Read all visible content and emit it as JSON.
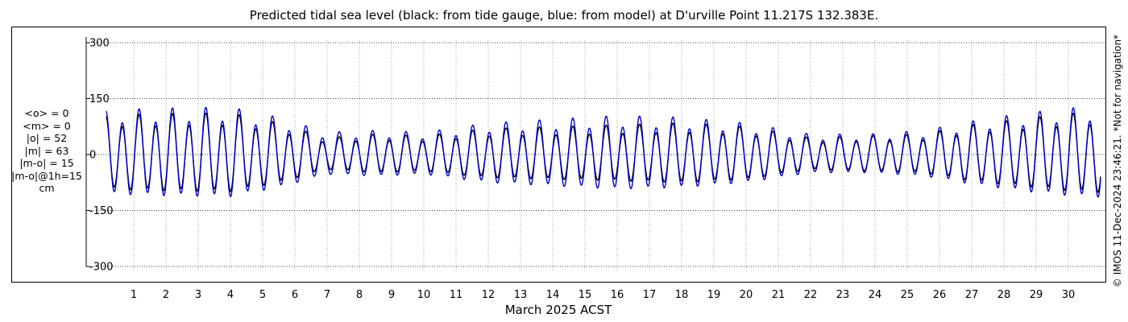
{
  "chart_data": {
    "type": "line",
    "title": "Predicted tidal sea level (black: from tide gauge, blue: from model) at D'urville Point 11.217S 132.383E.",
    "xlabel": "March 2025 ACST",
    "ylabel": "",
    "ylim": [
      -300,
      300
    ],
    "yticks": [
      -300,
      -150,
      0,
      150,
      300
    ],
    "ytick_labels": [
      "-300",
      "-150",
      "0",
      "150",
      "300"
    ],
    "xlim": [
      0.15,
      31.0
    ],
    "xticks": [
      1,
      2,
      3,
      4,
      5,
      6,
      7,
      8,
      9,
      10,
      11,
      12,
      13,
      14,
      15,
      16,
      17,
      18,
      19,
      20,
      21,
      22,
      23,
      24,
      25,
      26,
      27,
      28,
      29,
      30
    ],
    "xtick_labels": [
      "1",
      "2",
      "3",
      "4",
      "5",
      "6",
      "7",
      "8",
      "9",
      "10",
      "11",
      "12",
      "13",
      "14",
      "15",
      "16",
      "17",
      "18",
      "19",
      "20",
      "21",
      "22",
      "23",
      "24",
      "25",
      "26",
      "27",
      "28",
      "29",
      "30"
    ],
    "grid": true,
    "legend": "none",
    "stats_lines": [
      "<o> = 0",
      "<m> = 0",
      "|o| = 52",
      "|m| = 63",
      "|m-o| = 15",
      "|m-o|@1h=15",
      "cm"
    ],
    "credit": "© IMOS 11-Dec-2024 23:46:21. *Not for navigation*",
    "series": [
      {
        "color": "#000000",
        "amplitude_envelope": {
          "x": [
            0.2,
            2.0,
            4.0,
            5.5,
            7.0,
            8.5,
            10.0,
            12.0,
            14.0,
            16.0,
            18.0,
            20.0,
            22.0,
            23.8,
            25.5,
            27.0,
            28.5,
            30.0,
            31.0
          ],
          "y": [
            105,
            110,
            112,
            85,
            45,
            55,
            50,
            70,
            75,
            80,
            85,
            75,
            45,
            50,
            55,
            80,
            95,
            110,
            115
          ]
        }
      },
      {
        "color": "#0000cc",
        "amplitude_envelope": {
          "x": [
            0.2,
            2.0,
            4.0,
            5.5,
            7.0,
            8.5,
            10.0,
            12.0,
            14.0,
            16.0,
            18.0,
            20.0,
            22.0,
            23.8,
            25.5,
            27.0,
            28.5,
            30.0,
            31.0
          ],
          "y": [
            120,
            125,
            128,
            100,
            60,
            65,
            60,
            85,
            95,
            105,
            100,
            85,
            55,
            55,
            65,
            90,
            110,
            125,
            130
          ]
        }
      }
    ]
  }
}
